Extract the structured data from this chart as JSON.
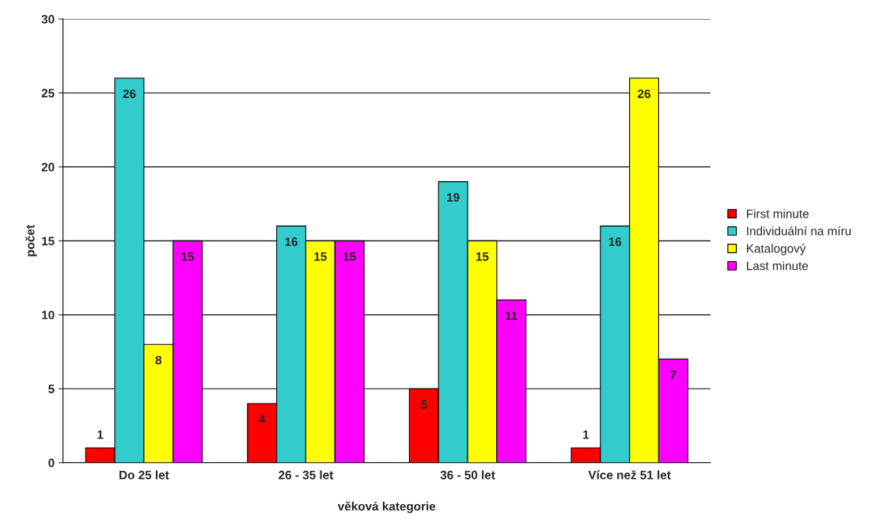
{
  "chart_data": {
    "type": "bar",
    "xlabel": "věková kategorie",
    "ylabel": "počet",
    "categories": [
      "Do 25 let",
      "26 - 35 let",
      "36 - 50 let",
      "Více než 51 let"
    ],
    "series": [
      {
        "name": "First minute",
        "color": "#ff0000",
        "values": [
          1,
          4,
          5,
          1
        ]
      },
      {
        "name": "Individuální na míru",
        "color": "#33cccc",
        "values": [
          26,
          16,
          19,
          16
        ]
      },
      {
        "name": "Katalogový",
        "color": "#ffff00",
        "values": [
          8,
          15,
          15,
          26
        ]
      },
      {
        "name": "Last minute",
        "color": "#ff00ff",
        "values": [
          15,
          15,
          11,
          7
        ]
      }
    ],
    "ylim": [
      0,
      30
    ],
    "yticks": [
      0,
      5,
      10,
      15,
      20,
      25,
      30
    ],
    "grid": "y",
    "legend": "right",
    "data_labels": true
  }
}
